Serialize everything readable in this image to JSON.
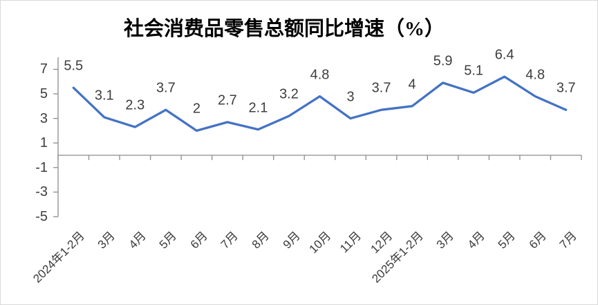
{
  "title": "社会消费品零售总额同比增速（%）",
  "chart_data": {
    "type": "line",
    "title": "社会消费品零售总额同比增速（%）",
    "categories": [
      "2024年1-2月",
      "3月",
      "4月",
      "5月",
      "6月",
      "7月",
      "8月",
      "9月",
      "10月",
      "11月",
      "12月",
      "2025年1-2月",
      "3月",
      "4月",
      "5月",
      "6月",
      "7月"
    ],
    "values": [
      5.5,
      3.1,
      2.3,
      3.7,
      2,
      2.7,
      2.1,
      3.2,
      4.8,
      3,
      3.7,
      4,
      5.9,
      5.1,
      6.4,
      4.8,
      3.7
    ],
    "y_ticks": [
      7,
      5,
      3,
      1,
      -1,
      -3,
      -5
    ],
    "ylim": [
      -5,
      8
    ],
    "xlabel": "",
    "ylabel": "",
    "grid": false,
    "legend": "none",
    "data_labels": true,
    "x_label_rotation_deg": 45,
    "colors": {
      "series_line": "#4472C4",
      "axis_line": "#8c8c8c",
      "label_text": "#3d3d3d",
      "title_text": "#000000",
      "frame_border": "#d9d9d9"
    }
  }
}
